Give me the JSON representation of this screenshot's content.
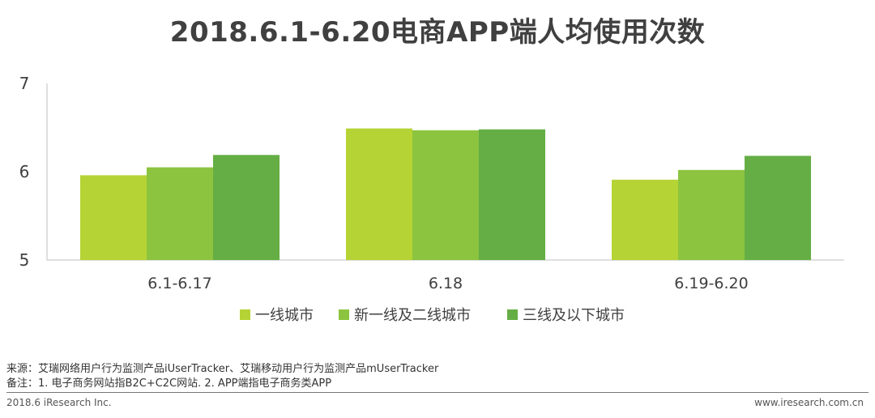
{
  "chart_data": {
    "type": "bar",
    "title": "2018.6.1-6.20电商APP端人均使用次数",
    "xlabel": "",
    "ylabel": "",
    "ylim": [
      5,
      7
    ],
    "yticks": [
      "5",
      "6",
      "7"
    ],
    "categories": [
      "6.1-6.17",
      "6.18",
      "6.19-6.20"
    ],
    "series": [
      {
        "name": "一线城市",
        "color": "#b5d334",
        "values": [
          5.96,
          6.49,
          5.91
        ]
      },
      {
        "name": "新一线及二线城市",
        "color": "#8cc43f",
        "values": [
          6.05,
          6.47,
          6.02
        ]
      },
      {
        "name": "三线及以下城市",
        "color": "#65ae45",
        "values": [
          6.19,
          6.48,
          6.18
        ]
      }
    ],
    "grid": false,
    "legend": "bottom-center"
  },
  "footnotes": {
    "source": "来源：艾瑞网络用户行为监测产品iUserTracker、艾瑞移动用户行为监测产品mUserTracker",
    "note": "备注：1. 电子商务网站指B2C+C2C网站. 2. APP端指电子商务类APP"
  },
  "footer": {
    "left": "2018.6 iResearch Inc.",
    "right": "www.iresearch.com.cn"
  }
}
